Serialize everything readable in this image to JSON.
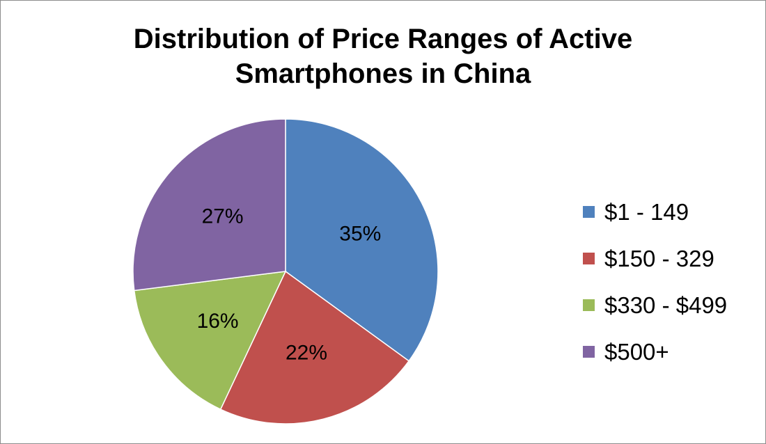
{
  "chart_data": {
    "type": "pie",
    "title_lines": [
      "Distribution of Price Ranges of Active",
      "Smartphones in China"
    ],
    "categories": [
      "$1 - 149",
      "$150 - 329",
      "$330 - $499",
      "$500+"
    ],
    "values": [
      35,
      22,
      16,
      27
    ],
    "labels": [
      "35%",
      "22%",
      "16%",
      "27%"
    ],
    "colors": [
      "#4f81bd",
      "#c0504d",
      "#9bbb59",
      "#8064a2"
    ],
    "legend_position": "right"
  }
}
